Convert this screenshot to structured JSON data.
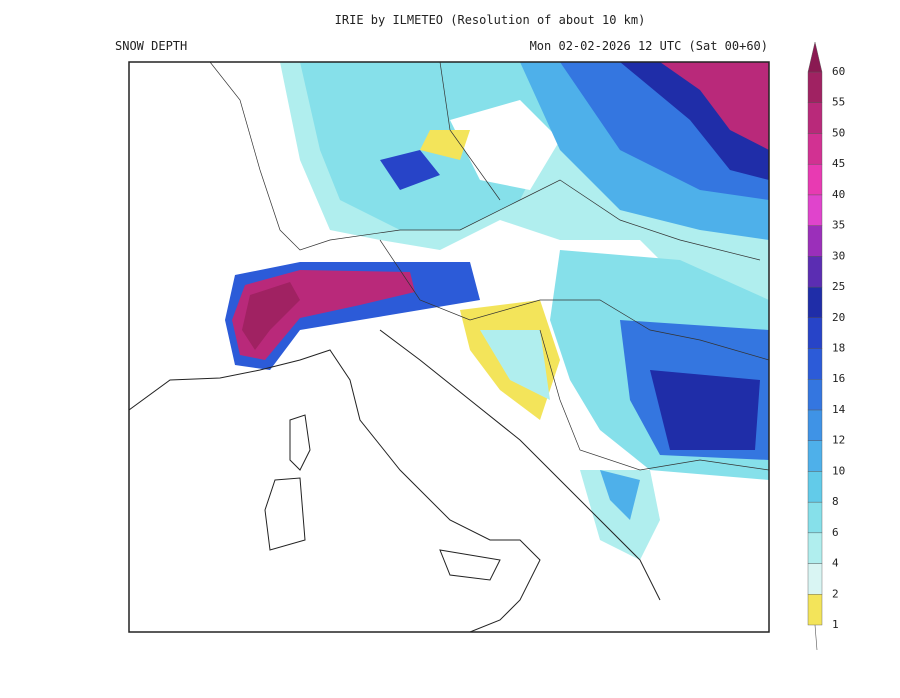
{
  "header": {
    "title": "IRIE by ILMETEO (Resolution of about 10 km)",
    "field": "SNOW DEPTH",
    "valid_time": "Mon 02-02-2026 12 UTC (Sat 00+60)"
  },
  "colorbar": {
    "levels": [
      1,
      2,
      4,
      6,
      8,
      10,
      12,
      14,
      16,
      18,
      20,
      25,
      30,
      35,
      40,
      45,
      50,
      55,
      60
    ],
    "colors": [
      "#f3e45a",
      "#d9f5f3",
      "#b0eeee",
      "#86e0ea",
      "#62cbe9",
      "#4eb0ea",
      "#3f93e6",
      "#3476e0",
      "#2c5bd8",
      "#2744c8",
      "#1f2da8",
      "#5b2db2",
      "#9b2fba",
      "#e044cc",
      "#e83ab2",
      "#d23192",
      "#b9297a",
      "#a02262",
      "#8a1a52"
    ]
  }
}
